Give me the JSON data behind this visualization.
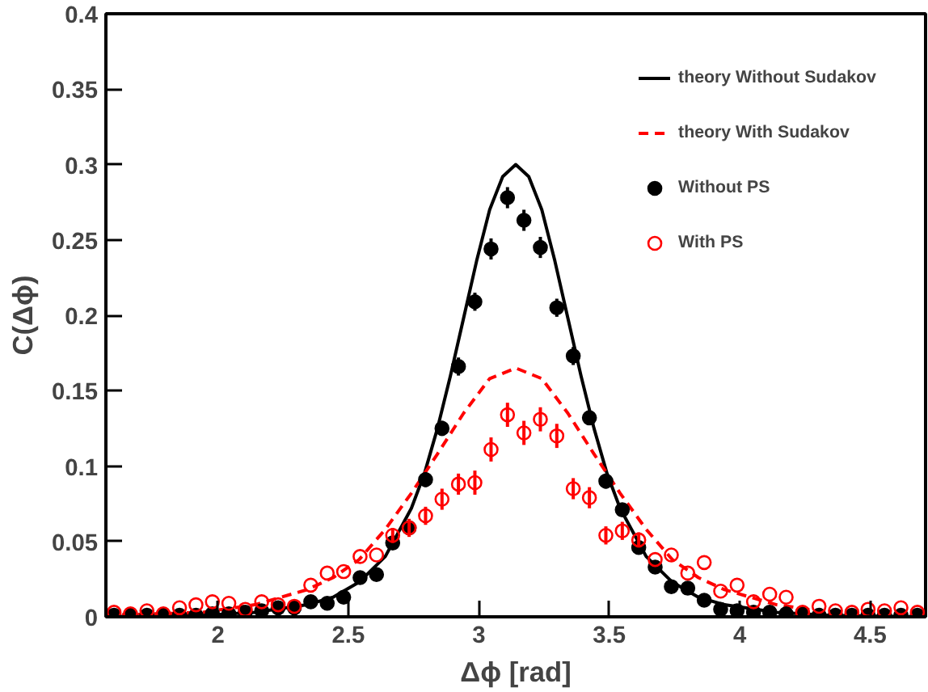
{
  "chart_data": {
    "type": "scatter",
    "xlabel": "Δϕ [rad]",
    "ylabel": "C(Δϕ)",
    "xlim": [
      1.5708,
      4.7124
    ],
    "ylim": [
      0,
      0.4
    ],
    "xticks": [
      2,
      2.5,
      3,
      3.5,
      4,
      4.5
    ],
    "yticks": [
      0,
      {
        "value": 0.05,
        "label": "0.05"
      },
      {
        "value": 0.1,
        "label": "0.1"
      },
      {
        "value": 0.15,
        "label": "0.15"
      },
      {
        "value": 0.2,
        "label": "0.2"
      },
      {
        "value": 0.25,
        "label": "0.25"
      },
      {
        "value": 0.3,
        "label": "0.3"
      },
      {
        "value": 0.35,
        "label": "0.35"
      },
      {
        "value": 0.4,
        "label": "0.4"
      }
    ],
    "grid": false,
    "legend": "top right",
    "x": [
      1.602,
      1.665,
      1.728,
      1.791,
      1.853,
      1.916,
      1.979,
      2.042,
      2.105,
      2.168,
      2.231,
      2.293,
      2.356,
      2.419,
      2.482,
      2.545,
      2.608,
      2.67,
      2.733,
      2.796,
      2.859,
      2.922,
      2.985,
      3.047,
      3.11,
      3.173,
      3.236,
      3.299,
      3.362,
      3.424,
      3.487,
      3.55,
      3.613,
      3.676,
      3.738,
      3.801,
      3.864,
      3.927,
      3.99,
      4.053,
      4.115,
      4.178,
      4.241,
      4.304,
      4.367,
      4.43,
      4.492,
      4.555,
      4.618,
      4.681
    ],
    "series": [
      {
        "name": "theory Without Sudakov",
        "type": "line",
        "color": "#000000",
        "line_style": "solid",
        "x": [
          1.5708,
          1.9416,
          2.1416,
          2.3416,
          2.4416,
          2.5416,
          2.6416,
          2.7416,
          2.7916,
          2.8416,
          2.8916,
          2.9416,
          2.9916,
          3.0416,
          3.0916,
          3.1416,
          3.1916,
          3.2416,
          3.2916,
          3.3416,
          3.3916,
          3.4416,
          3.4916,
          3.5416,
          3.6416,
          3.7416,
          3.8416,
          3.9416,
          4.1416,
          4.3416,
          4.7124
        ],
        "values": [
          0.0,
          0.001,
          0.003,
          0.008,
          0.013,
          0.023,
          0.04,
          0.072,
          0.095,
          0.125,
          0.16,
          0.198,
          0.236,
          0.27,
          0.292,
          0.3,
          0.292,
          0.27,
          0.236,
          0.198,
          0.16,
          0.125,
          0.095,
          0.072,
          0.04,
          0.023,
          0.013,
          0.008,
          0.003,
          0.001,
          0.0
        ]
      },
      {
        "name": "theory With Sudakov",
        "type": "line",
        "color": "#ff0000",
        "line_style": "dashed",
        "x": [
          1.5708,
          1.9416,
          2.1416,
          2.3416,
          2.4416,
          2.5416,
          2.6416,
          2.7416,
          2.8416,
          2.9416,
          3.0416,
          3.1416,
          3.2416,
          3.3416,
          3.4416,
          3.5416,
          3.6416,
          3.7416,
          3.8416,
          3.9416,
          4.1416,
          4.3416,
          4.7124
        ],
        "values": [
          0.001,
          0.003,
          0.008,
          0.018,
          0.026,
          0.038,
          0.058,
          0.082,
          0.108,
          0.135,
          0.158,
          0.165,
          0.158,
          0.135,
          0.108,
          0.082,
          0.058,
          0.038,
          0.026,
          0.018,
          0.008,
          0.003,
          0.001
        ]
      },
      {
        "name": "Without PS",
        "marker": "circle",
        "color": "#000000",
        "values": [
          0.001,
          0.001,
          0.001,
          0.001,
          0.001,
          0.001,
          0.002,
          0.002,
          0.003,
          0.004,
          0.006,
          0.006,
          0.01,
          0.009,
          0.013,
          0.026,
          0.028,
          0.049,
          0.059,
          0.091,
          0.125,
          0.166,
          0.209,
          0.244,
          0.278,
          0.263,
          0.245,
          0.205,
          0.173,
          0.132,
          0.09,
          0.071,
          0.046,
          0.033,
          0.02,
          0.019,
          0.011,
          0.005,
          0.004,
          0.003,
          0.003,
          0.002,
          0.002,
          0.001,
          0.001,
          0.001,
          0.001,
          0.001,
          0.001,
          0.001
        ],
        "errors": [
          null,
          null,
          null,
          null,
          null,
          null,
          null,
          null,
          null,
          null,
          null,
          null,
          null,
          null,
          null,
          null,
          null,
          0.004,
          0.004,
          0.005,
          0.005,
          0.006,
          0.006,
          0.007,
          0.007,
          0.007,
          0.007,
          0.006,
          0.006,
          0.005,
          0.005,
          0.004,
          0.004,
          null,
          null,
          null,
          null,
          null,
          null,
          null,
          null,
          null,
          null,
          null,
          null,
          null,
          null,
          null,
          null,
          null
        ]
      },
      {
        "name": "With PS",
        "marker": "circle",
        "color": "#ff0000",
        "values": [
          0.003,
          0.002,
          0.004,
          0.002,
          0.006,
          0.008,
          0.01,
          0.009,
          0.005,
          0.01,
          0.008,
          0.007,
          0.021,
          0.029,
          0.03,
          0.04,
          0.041,
          0.054,
          0.059,
          0.067,
          0.078,
          0.088,
          0.089,
          0.111,
          0.134,
          0.122,
          0.131,
          0.12,
          0.085,
          0.079,
          0.054,
          0.057,
          0.051,
          0.038,
          0.041,
          0.029,
          0.036,
          0.017,
          0.021,
          0.01,
          0.015,
          0.013,
          0.003,
          0.007,
          0.004,
          0.003,
          0.005,
          0.004,
          0.006,
          0.003
        ],
        "errors": [
          null,
          null,
          null,
          null,
          null,
          null,
          null,
          null,
          null,
          null,
          null,
          null,
          null,
          null,
          null,
          null,
          null,
          0.005,
          0.006,
          0.006,
          0.007,
          0.007,
          0.008,
          0.008,
          0.008,
          0.008,
          0.008,
          0.008,
          0.007,
          0.007,
          0.006,
          0.006,
          0.005,
          null,
          null,
          null,
          null,
          null,
          null,
          null,
          null,
          null,
          null,
          null,
          null,
          null,
          null,
          null,
          null,
          null
        ]
      }
    ]
  }
}
